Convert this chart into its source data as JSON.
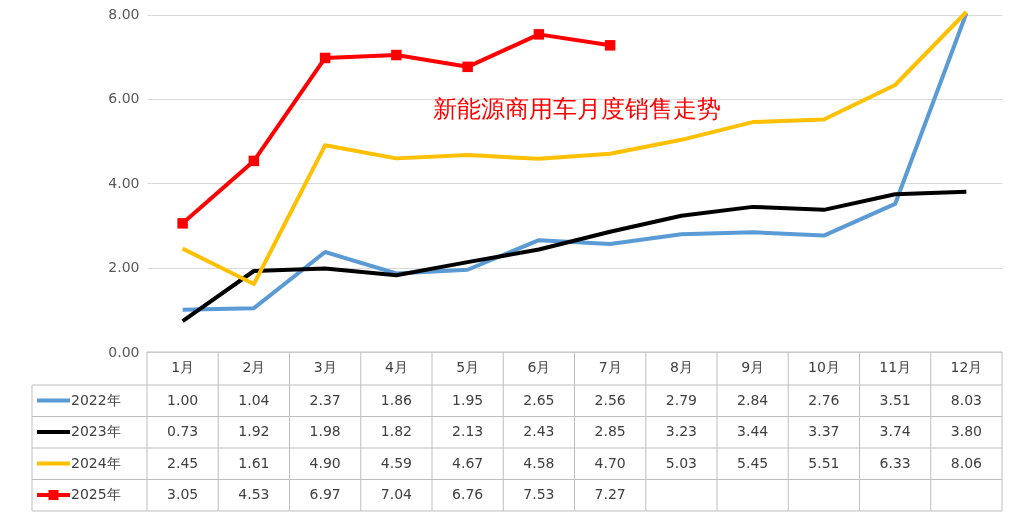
{
  "chart_data": {
    "type": "line",
    "title": "新能源商用车月度销售走势",
    "categories": [
      "1月",
      "2月",
      "3月",
      "4月",
      "5月",
      "6月",
      "7月",
      "8月",
      "9月",
      "10月",
      "11月",
      "12月"
    ],
    "series": [
      {
        "name": "2022年",
        "color": "#5b9bd5",
        "values": [
          1.0,
          1.04,
          2.37,
          1.86,
          1.95,
          2.65,
          2.56,
          2.79,
          2.84,
          2.76,
          3.51,
          8.03
        ],
        "value_labels": [
          "1.00",
          "1.04",
          "2.37",
          "1.86",
          "1.95",
          "2.65",
          "2.56",
          "2.79",
          "2.84",
          "2.76",
          "3.51",
          "8.03"
        ]
      },
      {
        "name": "2023年",
        "color": "#000000",
        "values": [
          0.73,
          1.92,
          1.98,
          1.82,
          2.13,
          2.43,
          2.85,
          3.23,
          3.44,
          3.37,
          3.74,
          3.8
        ],
        "value_labels": [
          "0.73",
          "1.92",
          "1.98",
          "1.82",
          "2.13",
          "2.43",
          "2.85",
          "3.23",
          "3.44",
          "3.37",
          "3.74",
          "3.80"
        ]
      },
      {
        "name": "2024年",
        "color": "#ffc000",
        "values": [
          2.45,
          1.61,
          4.9,
          4.59,
          4.67,
          4.58,
          4.7,
          5.03,
          5.45,
          5.51,
          6.33,
          8.06
        ],
        "value_labels": [
          "2.45",
          "1.61",
          "4.90",
          "4.59",
          "4.67",
          "4.58",
          "4.70",
          "5.03",
          "5.45",
          "5.51",
          "6.33",
          "8.06"
        ]
      },
      {
        "name": "2025年",
        "color": "#ff0000",
        "marker": "square",
        "values": [
          3.05,
          4.53,
          6.97,
          7.04,
          6.76,
          7.53,
          7.27,
          null,
          null,
          null,
          null,
          null
        ],
        "value_labels": [
          "3.05",
          "4.53",
          "6.97",
          "7.04",
          "6.76",
          "7.53",
          "7.27",
          null,
          null,
          null,
          null,
          null
        ]
      }
    ],
    "ylim": [
      0,
      8.06
    ],
    "yticks": [
      {
        "value": 0,
        "label": "0.00"
      },
      {
        "value": 2,
        "label": "2.00"
      },
      {
        "value": 4,
        "label": "4.00"
      },
      {
        "value": 6,
        "label": "6.00"
      },
      {
        "value": 8,
        "label": "8.00"
      }
    ],
    "grid": "y",
    "legend": "bottom left"
  }
}
